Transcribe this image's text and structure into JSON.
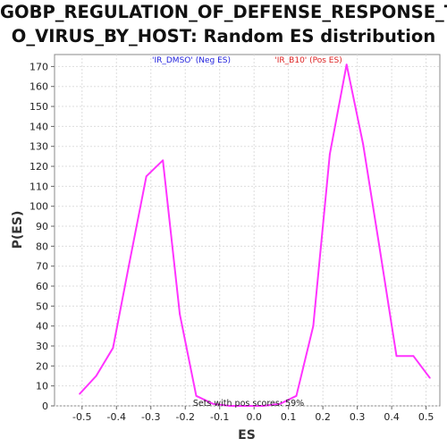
{
  "chart_data": {
    "type": "line",
    "title_line1": "GOBP_REGULATION_OF_DEFENSE_RESPONSE_T",
    "title_line2": "O_VIRUS_BY_HOST: Random ES distribution",
    "xlabel": "ES",
    "ylabel": "P(ES)",
    "xlim": [
      -0.58,
      0.54
    ],
    "ylim": [
      0,
      176
    ],
    "xticks": [
      -0.5,
      -0.4,
      -0.3,
      -0.2,
      -0.1,
      0.0,
      0.1,
      0.2,
      0.3,
      0.4,
      0.5
    ],
    "xtick_labels": [
      "-0.5",
      "-0.4",
      "-0.3",
      "-0.2",
      "-0.1",
      "0.0",
      "0.1",
      "0.2",
      "0.3",
      "0.4",
      "0.5"
    ],
    "yticks": [
      0,
      10,
      20,
      30,
      40,
      50,
      60,
      70,
      80,
      90,
      100,
      110,
      120,
      130,
      140,
      150,
      160,
      170
    ],
    "ytick_labels": [
      "0",
      "10",
      "20",
      "30",
      "40",
      "50",
      "60",
      "70",
      "80",
      "90",
      "100",
      "110",
      "120",
      "130",
      "140",
      "150",
      "160",
      "170"
    ],
    "grid": true,
    "legend": [
      {
        "label": "'IR_DMSO' (Neg ES)",
        "color": "#2222dd"
      },
      {
        "label": "'IR_B10' (Pos ES)",
        "color": "#dd2222"
      }
    ],
    "annotation": "Sets with pos scores: 59%",
    "series": [
      {
        "color": "#ff33ff",
        "x": [
          -0.507,
          -0.459,
          -0.41,
          -0.362,
          -0.313,
          -0.265,
          -0.216,
          -0.168,
          -0.119,
          -0.071,
          -0.022,
          0.026,
          0.075,
          0.123,
          0.172,
          0.22,
          0.269,
          0.317,
          0.366,
          0.414,
          0.463,
          0.511
        ],
        "y": [
          6,
          15,
          29,
          72,
          115,
          123,
          46,
          5,
          1,
          0,
          0,
          0,
          1,
          5,
          40,
          126,
          171,
          131,
          78,
          25,
          25,
          14
        ]
      }
    ]
  }
}
